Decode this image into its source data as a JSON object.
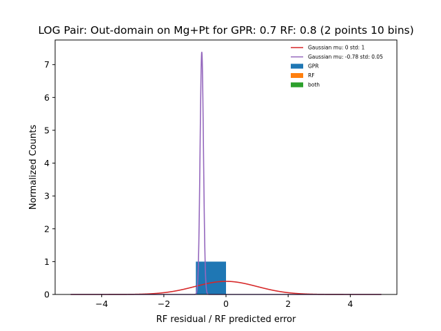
{
  "chart_data": {
    "type": "histogram",
    "title": "LOG Pair: Out-domain on Mg+Pt for GPR: 0.7 RF: 0.8 (2 points 10 bins)",
    "xlabel": "RF residual / RF predicted error",
    "ylabel": "Normalized Counts",
    "xlim": [
      -5.5,
      5.5
    ],
    "ylim": [
      0,
      7.75
    ],
    "xticks": [
      -4,
      -2,
      0,
      2,
      4
    ],
    "yticks": [
      0,
      1,
      2,
      3,
      4,
      5,
      6,
      7
    ],
    "grid": false,
    "legend_position": "top-right",
    "bars": [
      {
        "series": "GPR",
        "x0": -0.97,
        "x1": 0.0,
        "height": 1.0,
        "color": "#1f77b4"
      }
    ],
    "curves": [
      {
        "name": "Gaussian mu: 0 std: 1",
        "mu": 0,
        "std": 1,
        "color": "#d62728",
        "x_range": [
          -5,
          5
        ]
      },
      {
        "name": "Gaussian mu: -0.78 std: 0.05",
        "mu": -0.78,
        "std": 0.054,
        "color": "#9467bd",
        "x_range": [
          -5,
          5
        ]
      }
    ],
    "legend": [
      {
        "label": "Gaussian mu: 0 std: 1",
        "kind": "line",
        "color": "#d62728"
      },
      {
        "label": "Gaussian mu: -0.78 std: 0.05",
        "kind": "line",
        "color": "#9467bd"
      },
      {
        "label": "GPR",
        "kind": "patch",
        "color": "#1f77b4"
      },
      {
        "label": "RF",
        "kind": "patch",
        "color": "#ff7f0e"
      },
      {
        "label": "both",
        "kind": "patch",
        "color": "#2ca02c"
      }
    ]
  }
}
